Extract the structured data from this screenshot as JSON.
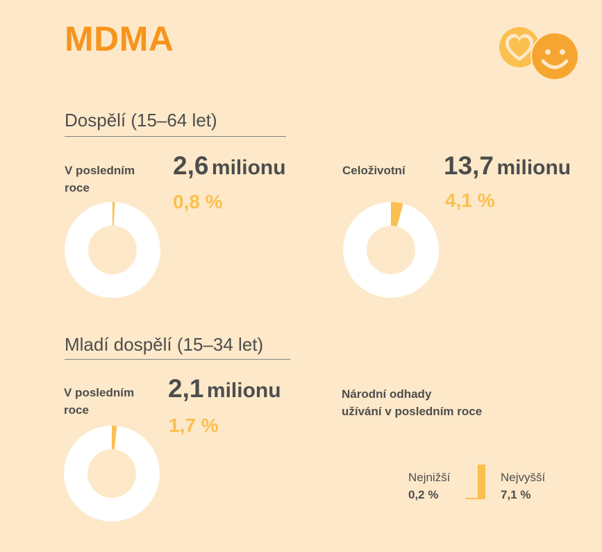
{
  "title": "MDMA",
  "colors": {
    "background": "#fde9c9",
    "title": "#f7941d",
    "accent": "#fbbf4f",
    "text": "#4d4d4d",
    "donut_ring": "#ffffff"
  },
  "logo": {
    "icons": [
      "heart-icon",
      "smiley-face-icon"
    ]
  },
  "adults": {
    "heading": "Dospělí (15–64 let)",
    "last_year": {
      "label_line1": "V posledním",
      "label_line2": "roce",
      "value_number": "2,6",
      "value_unit": "milionu",
      "percent_text": "0,8 %",
      "percent": 0.8
    },
    "lifetime": {
      "label": "Celoživotní",
      "value_number": "13,7",
      "value_unit": "milionu",
      "percent_text": "4,1 %",
      "percent": 4.1
    }
  },
  "young_adults": {
    "heading": "Mladí dospělí (15–34 let)",
    "last_year": {
      "label_line1": "V posledním",
      "label_line2": "roce",
      "value_number": "2,1",
      "value_unit": "milionu",
      "percent_text": "1,7 %",
      "percent": 1.7
    }
  },
  "national_estimates": {
    "title_line1": "Národní odhady",
    "title_line2": "užívání v posledním roce",
    "lowest_label": "Nejnižší",
    "lowest_value": "0,2 %",
    "lowest": 0.2,
    "highest_label": "Nejvyšší",
    "highest_value": "7,1 %",
    "highest": 7.1
  }
}
